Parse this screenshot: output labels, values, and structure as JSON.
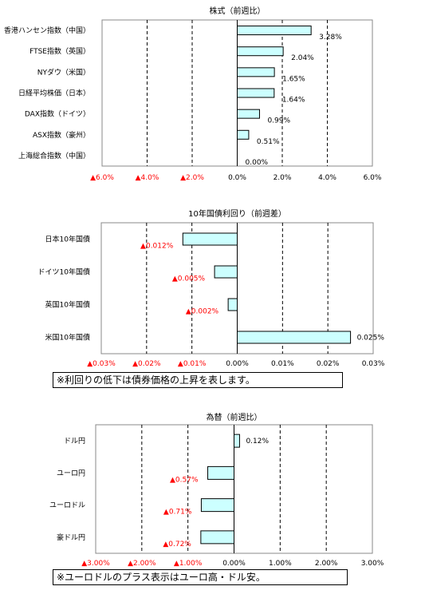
{
  "chart_data": [
    {
      "type": "bar",
      "orientation": "horizontal",
      "title": "株式（前週比）",
      "categories": [
        "香港ハンセン指数（中国）",
        "FTSE指数（英国）",
        "NYダウ（米国）",
        "日経平均株価（日本）",
        "DAX指数（ドイツ）",
        "ASX指数（豪州）",
        "上海総合指数（中国）"
      ],
      "values": [
        3.28,
        2.04,
        1.65,
        1.64,
        0.99,
        0.51,
        0.0
      ],
      "value_labels": [
        "3.28%",
        "2.04%",
        "1.65%",
        "1.64%",
        "0.99%",
        "0.51%",
        "0.00%"
      ],
      "xlim": [
        -6.0,
        6.0
      ],
      "ticks": [
        -6,
        -4,
        -2,
        0,
        2,
        4,
        6
      ],
      "tick_labels": [
        "▲6.0%",
        "▲4.0%",
        "▲2.0%",
        "0.0%",
        "2.0%",
        "4.0%",
        "6.0%"
      ],
      "grid": true
    },
    {
      "type": "bar",
      "orientation": "horizontal",
      "title": "10年国債利回り（前週差）",
      "categories": [
        "日本10年国債",
        "ドイツ10年国債",
        "英国10年国債",
        "米国10年国債"
      ],
      "values": [
        -0.012,
        -0.005,
        -0.002,
        0.025
      ],
      "value_labels": [
        "▲0.012%",
        "▲0.005%",
        "▲0.002%",
        "0.025%"
      ],
      "xlim": [
        -0.03,
        0.03
      ],
      "ticks": [
        -0.03,
        -0.02,
        -0.01,
        0,
        0.01,
        0.02,
        0.03
      ],
      "tick_labels": [
        "▲0.03%",
        "▲0.02%",
        "▲0.01%",
        "0.00%",
        "0.01%",
        "0.02%",
        "0.03%"
      ],
      "grid": true,
      "note": "※利回りの低下は債券価格の上昇を表します。"
    },
    {
      "type": "bar",
      "orientation": "horizontal",
      "title": "為替（前週比）",
      "categories": [
        "ドル円",
        "ユーロ円",
        "ユーロドル",
        "豪ドル円"
      ],
      "values": [
        0.12,
        -0.57,
        -0.71,
        -0.72
      ],
      "value_labels": [
        "0.12%",
        "▲0.57%",
        "▲0.71%",
        "▲0.72%"
      ],
      "xlim": [
        -3.0,
        3.0
      ],
      "ticks": [
        -3,
        -2,
        -1,
        0,
        1,
        2,
        3
      ],
      "tick_labels": [
        "▲3.00%",
        "▲2.00%",
        "▲1.00%",
        "0.00%",
        "1.00%",
        "2.00%",
        "3.00%"
      ],
      "grid": true,
      "note": "※ユーロドルのプラス表示はユーロ高・ドル安。"
    }
  ],
  "colors": {
    "bar_fill": "#ccffff",
    "bar_stroke": "#000000",
    "negative_text": "#ff0000",
    "positive_text": "#000000"
  }
}
